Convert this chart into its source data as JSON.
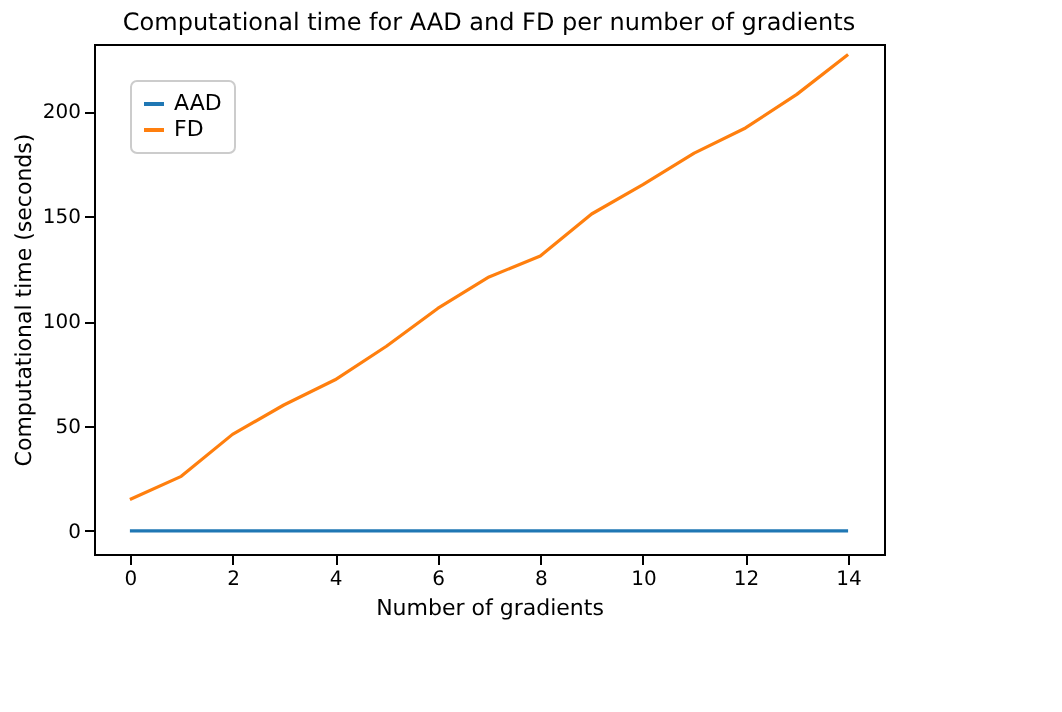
{
  "chart_data": {
    "type": "line",
    "title": "Computational time for AAD and FD per number of gradients",
    "xlabel": "Number of gradients",
    "ylabel": "Computational time (seconds)",
    "x": [
      0,
      1,
      2,
      3,
      4,
      5,
      6,
      7,
      8,
      9,
      10,
      11,
      12,
      13,
      14
    ],
    "series": [
      {
        "name": "AAD",
        "color": "#1f77b4",
        "values": [
          0,
          0,
          0,
          0,
          0,
          0,
          0,
          0,
          0,
          0,
          0,
          0,
          0,
          0,
          0
        ]
      },
      {
        "name": "FD",
        "color": "#ff7f0e",
        "values": [
          15,
          26,
          46,
          60,
          72,
          88,
          106,
          121,
          131,
          151,
          165,
          180,
          192,
          208,
          227
        ]
      }
    ],
    "xlim": [
      -0.7,
      14.7
    ],
    "xticks": [
      0,
      2,
      4,
      6,
      8,
      10,
      12,
      14
    ],
    "ylim": [
      -11,
      232
    ],
    "yticks": [
      0,
      50,
      100,
      150,
      200
    ],
    "grid": false,
    "legend": "top left",
    "marker": "none",
    "line_style": "solid"
  }
}
